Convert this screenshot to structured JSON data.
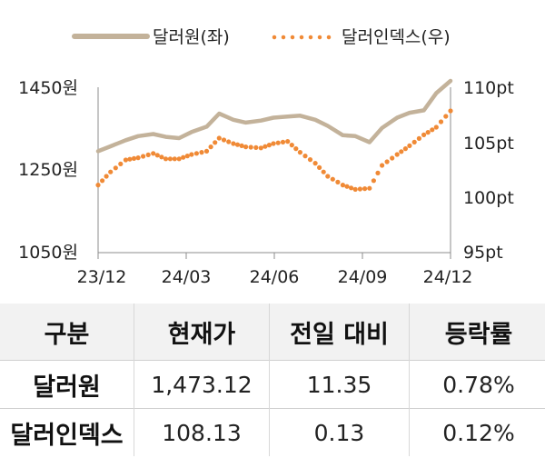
{
  "chart_data": {
    "type": "line",
    "legend": {
      "placement": "top",
      "entries": [
        {
          "label": "달러원(좌)",
          "style": "solid",
          "color": "#c3b29a"
        },
        {
          "label": "달러인덱스(우)",
          "style": "dotted",
          "color": "#f08a36"
        }
      ]
    },
    "x_ticks": [
      "23/12",
      "24/03",
      "24/06",
      "24/09",
      "24/12"
    ],
    "x_range": [
      "2023-12-01",
      "2024-12-31"
    ],
    "y_left": {
      "ticks": [
        "1450원",
        "1250원",
        "1050원"
      ],
      "range": [
        1050,
        1450
      ]
    },
    "y_right": {
      "ticks": [
        "110pt",
        "105pt",
        "100pt",
        "95pt"
      ],
      "range": [
        95,
        110
      ]
    },
    "grid": false,
    "series": [
      {
        "name": "달러원(좌)",
        "axis": "left",
        "color": "#c3b29a",
        "x": [
          "2023-12-01",
          "2023-12-15",
          "2024-01-01",
          "2024-01-15",
          "2024-02-01",
          "2024-02-15",
          "2024-03-01",
          "2024-03-15",
          "2024-04-01",
          "2024-04-15",
          "2024-05-01",
          "2024-05-15",
          "2024-06-01",
          "2024-06-15",
          "2024-07-01",
          "2024-07-15",
          "2024-08-01",
          "2024-08-15",
          "2024-09-01",
          "2024-09-15",
          "2024-10-01",
          "2024-10-15",
          "2024-11-01",
          "2024-11-15",
          "2024-12-01",
          "2024-12-15",
          "2024-12-31"
        ],
        "y": [
          1298,
          1310,
          1325,
          1335,
          1340,
          1333,
          1330,
          1345,
          1358,
          1390,
          1375,
          1368,
          1373,
          1380,
          1383,
          1385,
          1375,
          1360,
          1337,
          1335,
          1320,
          1355,
          1380,
          1392,
          1398,
          1440,
          1470
        ]
      },
      {
        "name": "달러인덱스(우)",
        "axis": "right",
        "color": "#f08a36",
        "x": [
          "2023-12-01",
          "2023-12-15",
          "2024-01-01",
          "2024-01-15",
          "2024-02-01",
          "2024-02-15",
          "2024-03-01",
          "2024-03-15",
          "2024-04-01",
          "2024-04-15",
          "2024-05-01",
          "2024-05-15",
          "2024-06-01",
          "2024-06-15",
          "2024-07-01",
          "2024-07-15",
          "2024-08-01",
          "2024-08-15",
          "2024-09-01",
          "2024-09-15",
          "2024-10-01",
          "2024-10-15",
          "2024-11-01",
          "2024-11-15",
          "2024-12-01",
          "2024-12-15",
          "2024-12-31"
        ],
        "y": [
          101.2,
          102.4,
          103.5,
          103.7,
          104.1,
          103.6,
          103.6,
          104.0,
          104.3,
          105.5,
          105.0,
          104.7,
          104.6,
          105.0,
          105.2,
          104.2,
          103.2,
          102.0,
          101.2,
          100.8,
          100.9,
          103.0,
          104.0,
          104.8,
          105.8,
          106.5,
          108.0
        ]
      }
    ]
  },
  "table": {
    "headers": [
      "구분",
      "현재가",
      "전일 대비",
      "등락률"
    ],
    "rows": [
      [
        "달러원",
        "1,473.12",
        "11.35",
        "0.78%"
      ],
      [
        "달러인덱스",
        "108.13",
        "0.13",
        "0.12%"
      ]
    ]
  }
}
